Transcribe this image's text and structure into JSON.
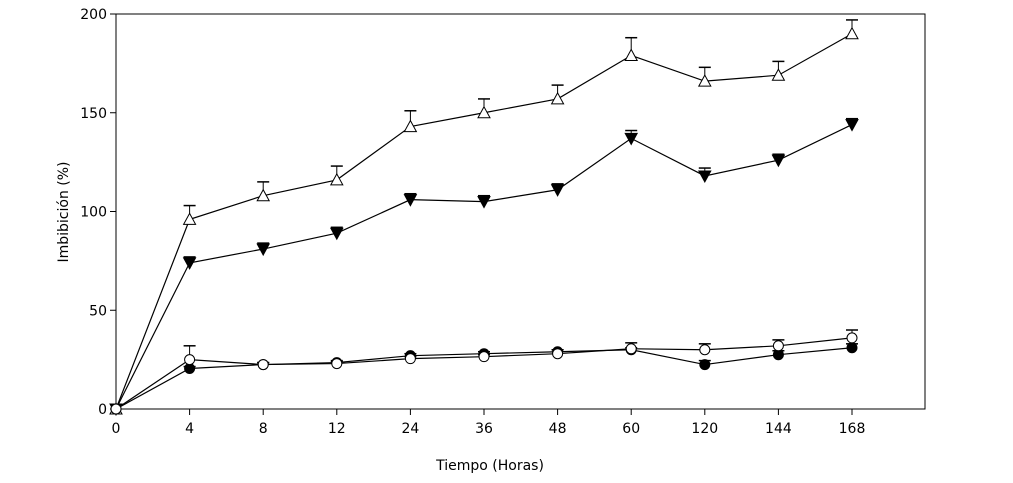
{
  "chart_data": {
    "type": "line",
    "title": "",
    "xlabel": "Tiempo (Horas)",
    "ylabel": "Imbibición (%)",
    "categories": [
      "0",
      "4",
      "8",
      "12",
      "24",
      "36",
      "48",
      "60",
      "120",
      "144",
      "168"
    ],
    "ylim": [
      0,
      200
    ],
    "yticks": [
      "0",
      "50",
      "100",
      "150",
      "200"
    ],
    "grid": false,
    "legend": "none",
    "series": [
      {
        "name": "open-triangle",
        "marker": "triangle-up-open",
        "values": [
          0,
          96,
          108,
          116,
          143,
          150,
          157,
          179,
          166,
          169,
          190
        ],
        "errors": [
          0,
          7,
          7,
          7,
          8,
          7,
          7,
          9,
          7,
          7,
          7
        ]
      },
      {
        "name": "filled-triangle-down",
        "marker": "triangle-down-filled",
        "values": [
          0,
          74,
          81,
          89,
          106,
          105,
          111,
          137,
          118,
          126,
          144
        ],
        "errors": [
          0,
          3,
          3,
          3,
          3,
          3,
          3,
          4,
          4,
          3,
          3
        ]
      },
      {
        "name": "filled-circle",
        "marker": "circle-filled",
        "values": [
          0,
          20.5,
          22.5,
          23.5,
          27,
          28,
          29,
          30,
          22.5,
          27.5,
          31
        ],
        "errors": [
          0,
          1,
          1,
          1,
          1,
          1,
          1,
          1,
          2,
          2,
          2
        ]
      },
      {
        "name": "open-circle",
        "marker": "circle-open",
        "values": [
          0,
          25,
          22.5,
          23,
          25.5,
          26.5,
          28,
          30.5,
          30,
          32,
          36
        ],
        "errors": [
          0,
          7,
          1,
          1,
          1,
          1,
          2,
          3,
          3,
          3,
          4
        ]
      }
    ]
  }
}
